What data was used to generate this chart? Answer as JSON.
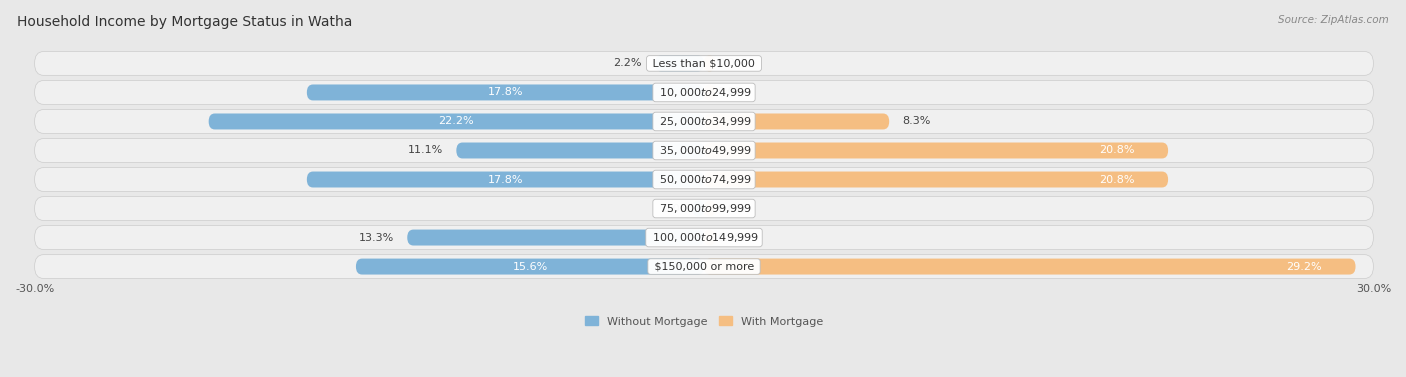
{
  "title": "Household Income by Mortgage Status in Watha",
  "source": "Source: ZipAtlas.com",
  "categories": [
    "Less than $10,000",
    "$10,000 to $24,999",
    "$25,000 to $34,999",
    "$35,000 to $49,999",
    "$50,000 to $74,999",
    "$75,000 to $99,999",
    "$100,000 to $149,999",
    "$150,000 or more"
  ],
  "without_mortgage": [
    2.2,
    17.8,
    22.2,
    11.1,
    17.8,
    0.0,
    13.3,
    15.6
  ],
  "with_mortgage": [
    0.0,
    0.0,
    8.3,
    20.8,
    20.8,
    0.0,
    0.0,
    29.2
  ],
  "color_without": "#7fb3d8",
  "color_with": "#f5be82",
  "xlim_left": -30.0,
  "xlim_right": 30.0,
  "bg_color": "#e8e8e8",
  "row_bg": "#f0f0f0",
  "title_fontsize": 10,
  "source_fontsize": 7.5,
  "label_fontsize": 8,
  "category_fontsize": 8,
  "legend_fontsize": 8,
  "tick_fontsize": 8
}
